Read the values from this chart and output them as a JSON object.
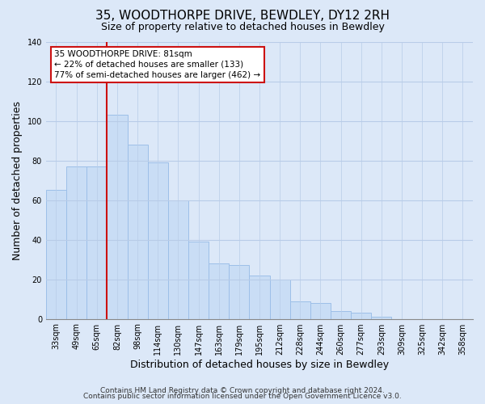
{
  "title": "35, WOODTHORPE DRIVE, BEWDLEY, DY12 2RH",
  "subtitle": "Size of property relative to detached houses in Bewdley",
  "xlabel": "Distribution of detached houses by size in Bewdley",
  "ylabel": "Number of detached properties",
  "bar_labels": [
    "33sqm",
    "49sqm",
    "65sqm",
    "82sqm",
    "98sqm",
    "114sqm",
    "130sqm",
    "147sqm",
    "163sqm",
    "179sqm",
    "195sqm",
    "212sqm",
    "228sqm",
    "244sqm",
    "260sqm",
    "277sqm",
    "293sqm",
    "309sqm",
    "325sqm",
    "342sqm",
    "358sqm"
  ],
  "bar_values": [
    65,
    77,
    77,
    103,
    88,
    79,
    60,
    39,
    28,
    27,
    22,
    20,
    9,
    8,
    4,
    3,
    1,
    0,
    0,
    0,
    0
  ],
  "bar_color": "#c9ddf5",
  "bar_edge_color": "#9dbfe8",
  "vline_x_idx": 3,
  "vline_color": "#cc1111",
  "annotation_text": "35 WOODTHORPE DRIVE: 81sqm\n← 22% of detached houses are smaller (133)\n77% of semi-detached houses are larger (462) →",
  "annotation_box_color": "#ffffff",
  "annotation_box_edge": "#cc1111",
  "ylim": [
    0,
    140
  ],
  "yticks": [
    0,
    20,
    40,
    60,
    80,
    100,
    120,
    140
  ],
  "footer1": "Contains HM Land Registry data © Crown copyright and database right 2024.",
  "footer2": "Contains public sector information licensed under the Open Government Licence v3.0.",
  "bg_color": "#dce8f8",
  "plot_bg_color": "#dce8f8",
  "title_fontsize": 11,
  "subtitle_fontsize": 9,
  "axis_label_fontsize": 9,
  "tick_fontsize": 7,
  "footer_fontsize": 6.5,
  "annotation_fontsize": 7.5
}
